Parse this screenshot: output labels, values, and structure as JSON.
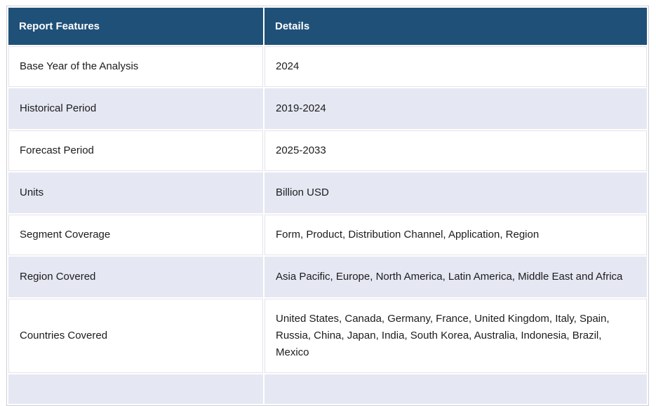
{
  "table": {
    "headers": {
      "feature": "Report Features",
      "details": "Details"
    },
    "rows": [
      {
        "feature": "Base Year of the Analysis",
        "details": "2024"
      },
      {
        "feature": "Historical Period",
        "details": "2019-2024"
      },
      {
        "feature": "Forecast Period",
        "details": "2025-2033"
      },
      {
        "feature": "Units",
        "details": "Billion USD"
      },
      {
        "feature": "Segment Coverage",
        "details": "Form, Product, Distribution Channel, Application, Region"
      },
      {
        "feature": "Region Covered",
        "details": "Asia Pacific, Europe, North America, Latin America, Middle East and Africa"
      },
      {
        "feature": "Countries Covered",
        "details": "United States, Canada, Germany, France, United Kingdom, Italy, Spain, Russia, China, Japan, India, South Korea, Australia, Indonesia, Brazil, Mexico"
      }
    ]
  },
  "colors": {
    "header_bg": "#1F5078",
    "row_stripe": "#E5E7F3",
    "border": "#CDD0D6",
    "text": "#1C1C1C",
    "header_text": "#FFFFFF"
  }
}
